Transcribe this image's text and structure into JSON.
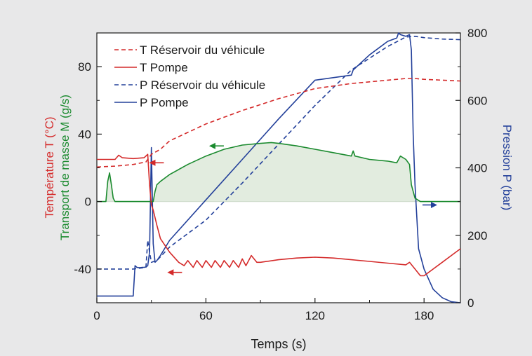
{
  "chart_data": {
    "type": "line",
    "xlabel": "Temps  (s)",
    "ylabel_left_red": "Température  T  (°C)",
    "ylabel_left_green": "Transport de masse  M  (g/s)",
    "ylabel_right": "Pression P  (bar)",
    "xlim": [
      0,
      200
    ],
    "ylim_left": [
      -60,
      100
    ],
    "ylim_right": [
      0,
      800
    ],
    "x_ticks": [
      "0",
      "60",
      "120",
      "180"
    ],
    "x_tick_values": [
      0,
      60,
      120,
      180
    ],
    "y_left_ticks": [
      "-40",
      "0",
      "40",
      "80"
    ],
    "y_left_tick_values": [
      -40,
      0,
      40,
      80
    ],
    "y_right_ticks": [
      "0",
      "200",
      "400",
      "600",
      "800"
    ],
    "y_right_tick_values": [
      0,
      200,
      400,
      600,
      800
    ],
    "legend": [
      {
        "label": "T Réservoir du véhicule",
        "color": "#d42a2a",
        "dash": true
      },
      {
        "label": "T Pompe",
        "color": "#d42a2a",
        "dash": false
      },
      {
        "label": "P Réservoir du véhicule",
        "color": "#23409a",
        "dash": true
      },
      {
        "label": "P Pompe",
        "color": "#23409a",
        "dash": false
      }
    ],
    "series": [
      {
        "name": "T Réservoir du véhicule",
        "axis": "left",
        "color": "#d42a2a",
        "dash": true,
        "x": [
          0,
          10,
          20,
          27,
          30,
          35,
          40,
          50,
          60,
          70,
          80,
          90,
          100,
          110,
          120,
          130,
          140,
          150,
          160,
          170,
          175,
          180,
          190,
          200
        ],
        "y": [
          20.5,
          21,
          22,
          23.5,
          28,
          31,
          36,
          41,
          46,
          50,
          54,
          57.5,
          61,
          64,
          67,
          68.5,
          70,
          71,
          72,
          73,
          73,
          72.5,
          72,
          71.5
        ]
      },
      {
        "name": "T Pompe",
        "axis": "left",
        "color": "#d42a2a",
        "dash": false,
        "x": [
          0,
          10,
          12,
          14,
          20,
          26,
          28,
          29,
          30,
          31,
          33,
          35,
          40,
          45,
          48,
          50,
          53,
          55,
          58,
          60,
          63,
          65,
          68,
          70,
          73,
          75,
          78,
          80,
          82,
          85,
          88,
          90,
          100,
          110,
          120,
          130,
          140,
          150,
          160,
          170,
          172,
          175,
          178,
          180,
          190,
          200
        ],
        "y": [
          25,
          25,
          27.5,
          26,
          25.5,
          26,
          28,
          10,
          -2,
          -5,
          -14,
          -22,
          -30,
          -36,
          -38,
          -35,
          -39,
          -35,
          -39,
          -35,
          -39,
          -35,
          -39,
          -35,
          -39,
          -35,
          -39,
          -34,
          -38,
          -32,
          -36,
          -36,
          -34.5,
          -33.5,
          -33,
          -33.5,
          -34.5,
          -35.5,
          -36.5,
          -37.5,
          -36,
          -40,
          -44,
          -44,
          -36,
          -28
        ]
      },
      {
        "name": "Transport de masse M",
        "axis": "left",
        "color": "#1a8a2e",
        "dash": false,
        "fill": "#e2ecdf",
        "x": [
          0,
          5,
          6,
          7,
          8,
          9,
          10,
          12,
          20,
          27,
          30,
          31,
          32,
          33,
          35,
          40,
          50,
          60,
          70,
          80,
          90,
          96,
          100,
          110,
          120,
          130,
          140,
          141,
          142,
          150,
          160,
          165,
          167,
          170,
          172,
          173,
          175,
          178,
          180,
          200
        ],
        "y": [
          0,
          0,
          12,
          17,
          10,
          2,
          0,
          0,
          0,
          0,
          0,
          0,
          6,
          10,
          12,
          16,
          22,
          27,
          31,
          33.5,
          34.5,
          35,
          34.5,
          33,
          31,
          29,
          27,
          30,
          27,
          25,
          24,
          23,
          27,
          25,
          22,
          10,
          2,
          0,
          0,
          0
        ]
      },
      {
        "name": "P Réservoir du véhicule",
        "axis": "right",
        "color": "#23409a",
        "dash": true,
        "x": [
          0,
          10,
          20,
          27,
          28,
          29,
          30,
          33,
          40,
          60,
          80,
          100,
          120,
          140,
          160,
          170,
          175,
          180,
          190,
          200
        ],
        "y": [
          100,
          100,
          100,
          105,
          185,
          150,
          120,
          125,
          165,
          245,
          355,
          470,
          585,
          690,
          760,
          788,
          790,
          786,
          782,
          780
        ]
      },
      {
        "name": "P Pompe",
        "axis": "right",
        "color": "#23409a",
        "dash": false,
        "x": [
          0,
          20,
          21,
          22,
          23,
          24,
          25,
          26,
          27,
          28,
          29,
          30,
          31,
          32,
          33,
          35,
          40,
          60,
          80,
          100,
          120,
          140,
          141,
          142,
          150,
          160,
          165,
          166,
          167,
          170,
          172,
          173,
          174,
          175,
          177,
          180,
          185,
          190,
          195,
          200
        ],
        "y": [
          20,
          20,
          110,
          105,
          104,
          104,
          105,
          105,
          106,
          110,
          150,
          460,
          175,
          120,
          125,
          140,
          185,
          305,
          425,
          545,
          660,
          675,
          690,
          695,
          735,
          775,
          785,
          800,
          795,
          790,
          795,
          750,
          500,
          350,
          160,
          100,
          40,
          15,
          3,
          0
        ]
      }
    ],
    "annotations": [
      {
        "series": "T Réservoir du véhicule",
        "arrow": "left",
        "color": "#d42a2a"
      },
      {
        "series": "Transport de masse M",
        "arrow": "left",
        "color": "#1a8a2e"
      },
      {
        "series": "P Pompe",
        "arrow": "right",
        "color": "#23409a"
      },
      {
        "series": "T Pompe",
        "arrow": "left",
        "color": "#d42a2a"
      }
    ]
  }
}
